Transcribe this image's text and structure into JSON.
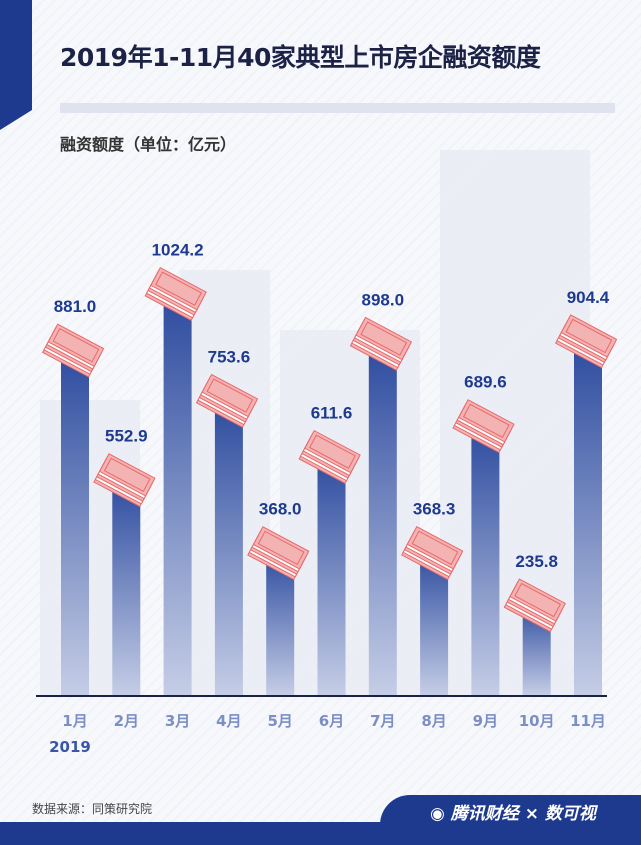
{
  "chart_data": {
    "type": "bar",
    "title": "2019年1-11月40家典型上市房企融资额度",
    "ylabel": "融资额度（单位：亿元）",
    "xlabel": "",
    "year_label": "2019",
    "categories": [
      "1月",
      "2月",
      "3月",
      "4月",
      "5月",
      "6月",
      "7月",
      "8月",
      "9月",
      "10月",
      "11月"
    ],
    "values": [
      881.0,
      552.9,
      1024.2,
      753.6,
      368.0,
      611.6,
      898.0,
      368.3,
      689.6,
      235.8,
      904.4
    ],
    "value_labels": [
      "881.0",
      "552.9",
      "1024.2",
      "753.6",
      "368.0",
      "611.6",
      "898.0",
      "368.3",
      "689.6",
      "235.8",
      "904.4"
    ],
    "ylim": [
      0,
      1100
    ],
    "grid": false
  },
  "footer": {
    "source": "数据来源：同策研究院",
    "brand": "腾讯财经",
    "separator": "×",
    "partner": "数可视"
  },
  "colors": {
    "bar_top": "#2b4a9e",
    "bar_bottom": "#c5cde6",
    "label": "#1d3a8f",
    "axis_label": "#7b8fc4",
    "money": "#e8696b"
  }
}
